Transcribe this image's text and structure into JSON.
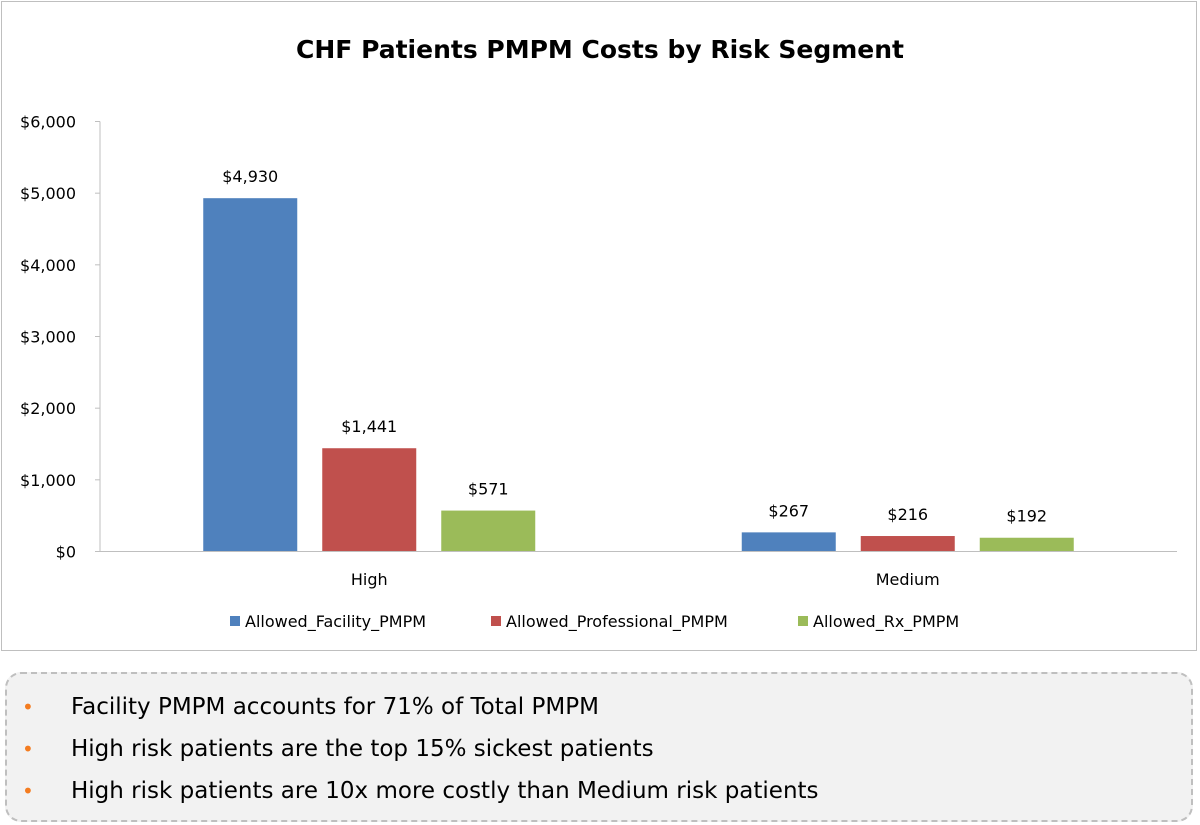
{
  "chart_data": {
    "type": "bar",
    "title": "CHF Patients PMPM Costs by Risk Segment",
    "categories": [
      "High",
      "Medium"
    ],
    "series": [
      {
        "name": "Allowed_Facility_PMPM",
        "values": [
          4930,
          267
        ],
        "labels": [
          "$4,930",
          "$267"
        ],
        "color": "#4f81bd"
      },
      {
        "name": "Allowed_Professional_PMPM",
        "values": [
          1441,
          216
        ],
        "labels": [
          "$1,441",
          "$216"
        ],
        "color": "#c0504d"
      },
      {
        "name": "Allowed_Rx_PMPM",
        "values": [
          571,
          192
        ],
        "labels": [
          "$571",
          "$192"
        ],
        "color": "#9bbb59"
      }
    ],
    "yticks": [
      {
        "value": 0,
        "label": "$0"
      },
      {
        "value": 1000,
        "label": "$1,000"
      },
      {
        "value": 2000,
        "label": "$2,000"
      },
      {
        "value": 3000,
        "label": "$3,000"
      },
      {
        "value": 4000,
        "label": "$4,000"
      },
      {
        "value": 5000,
        "label": "$5,000"
      },
      {
        "value": 6000,
        "label": "$6,000"
      }
    ],
    "ylim": [
      0,
      6000
    ],
    "grid": false,
    "legend_position": "bottom"
  },
  "notes": {
    "bullet_color": "#f47c20",
    "items": [
      "Facility PMPM accounts for 71% of Total PMPM",
      "High risk patients are the top 15% sickest patients",
      "High risk patients are 10x more costly than Medium risk patients"
    ]
  }
}
